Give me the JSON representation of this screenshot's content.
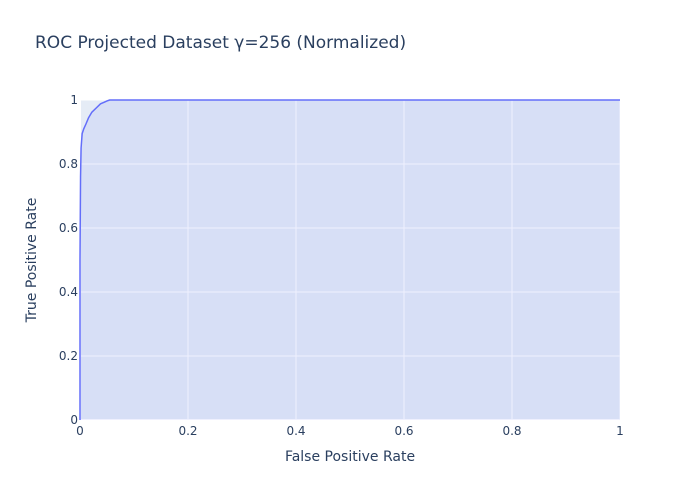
{
  "chart_data": {
    "type": "area",
    "title": "ROC Projected Dataset γ=256 (Normalized)",
    "xlabel": "False Positive Rate",
    "ylabel": "True Positive Rate",
    "xlim": [
      0,
      1
    ],
    "ylim": [
      0,
      1
    ],
    "x_ticks": [
      0,
      0.2,
      0.4,
      0.6,
      0.8,
      1
    ],
    "y_ticks": [
      0,
      0.2,
      0.4,
      0.6,
      0.8,
      1
    ],
    "x_tick_labels": [
      "0",
      "0.2",
      "0.4",
      "0.6",
      "0.8",
      "1"
    ],
    "y_tick_labels": [
      "0",
      "0.2",
      "0.4",
      "0.6",
      "0.8",
      "1"
    ],
    "grid": true,
    "legend": false,
    "colors": {
      "line": "#636efa",
      "fill": "rgba(99,110,250,0.10)",
      "plot_bg": "#e5ecf6",
      "grid": "#ffffff",
      "text": "#2a3f5f"
    },
    "series": [
      {
        "x": [
          0,
          0,
          0.001,
          0.002,
          0.004,
          0.007,
          0.011,
          0.016,
          0.022,
          0.03,
          0.038,
          0.045,
          0.05,
          0.055,
          0.2,
          0.4,
          0.6,
          0.8,
          1
        ],
        "y": [
          0,
          0.5,
          0.76,
          0.85,
          0.895,
          0.91,
          0.925,
          0.945,
          0.962,
          0.975,
          0.988,
          0.993,
          0.997,
          1,
          1,
          1,
          1,
          1,
          1
        ]
      }
    ]
  }
}
